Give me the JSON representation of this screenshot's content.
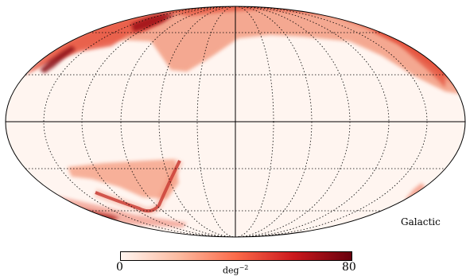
{
  "map": {
    "projection": "Mollweide",
    "coordinate_system": "Galactic",
    "grid": true,
    "colormap": {
      "name": "Reds",
      "stops": [
        "#fff5f0",
        "#fcbba1",
        "#fb6a4a",
        "#cb181d",
        "#67000d"
      ]
    }
  },
  "colorbar": {
    "min_label": "0",
    "max_label": "80",
    "unit_base": "deg",
    "unit_exp": "−2"
  }
}
